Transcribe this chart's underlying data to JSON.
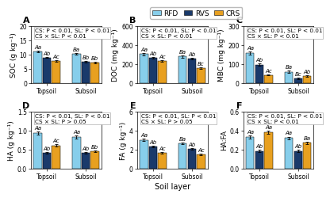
{
  "panels": [
    {
      "label": "A",
      "ylabel": "SOC (g kg⁻¹)",
      "ylim": [
        0,
        20
      ],
      "yticks": [
        0,
        5,
        10,
        15,
        20
      ],
      "stats": "CS: P < 0.01, SL: P < 0.01\nCS × SL: P < 0.01",
      "topsoil": [
        11.2,
        9.0,
        7.8
      ],
      "topsoil_err": [
        0.3,
        0.25,
        0.2
      ],
      "subsoil": [
        10.2,
        7.4,
        7.2
      ],
      "subsoil_err": [
        0.3,
        0.25,
        0.2
      ],
      "top_labels": [
        "Aa",
        "Ab",
        "Ac"
      ],
      "sub_labels": [
        "Ba",
        "Bb",
        "Bb"
      ]
    },
    {
      "label": "B",
      "ylabel": "DOC (mg kg⁻¹)",
      "ylim": [
        0,
        600
      ],
      "yticks": [
        0,
        200,
        400,
        600
      ],
      "stats": "CS: P < 0.01, SL: P < 0.01\nCS × SL: P < 0.01",
      "topsoil": [
        305,
        265,
        230
      ],
      "topsoil_err": [
        12,
        9,
        9
      ],
      "subsoil": [
        280,
        255,
        155
      ],
      "subsoil_err": [
        10,
        9,
        8
      ],
      "top_labels": [
        "Aa",
        "Ab",
        "Ac"
      ],
      "sub_labels": [
        "Ba",
        "Ab",
        "Bc"
      ]
    },
    {
      "label": "C",
      "ylabel": "MBC (mg kg⁻¹)",
      "ylim": [
        0,
        300
      ],
      "yticks": [
        0,
        100,
        200,
        300
      ],
      "stats": "CS: P < 0.01, SL: P < 0.01\nCS × SL: P < 0.01",
      "topsoil": [
        158,
        97,
        43
      ],
      "topsoil_err": [
        8,
        5,
        3
      ],
      "subsoil": [
        60,
        25,
        38
      ],
      "subsoil_err": [
        5,
        3,
        3
      ],
      "top_labels": [
        "Aa",
        "Ab",
        "Ac"
      ],
      "sub_labels": [
        "Ba",
        "Bc",
        "Ab"
      ]
    },
    {
      "label": "D",
      "ylabel": "HA (g kg⁻¹)",
      "ylim": [
        0.0,
        1.5
      ],
      "yticks": [
        0.0,
        0.5,
        1.0,
        1.5
      ],
      "stats": "CS: P < 0.01, SL: P < 0.01\nCS × SL: P > 0.05",
      "topsoil": [
        0.93,
        0.41,
        0.6
      ],
      "topsoil_err": [
        0.04,
        0.025,
        0.03
      ],
      "subsoil": [
        0.82,
        0.41,
        0.45
      ],
      "subsoil_err": [
        0.04,
        0.025,
        0.025
      ],
      "top_labels": [
        "Aa",
        "Ab",
        "Ac"
      ],
      "sub_labels": [
        "Aa",
        "Ab",
        "Bb"
      ]
    },
    {
      "label": "E",
      "ylabel": "FA (g kg⁻¹)",
      "ylim": [
        0,
        6
      ],
      "yticks": [
        0,
        2,
        4,
        6
      ],
      "stats": "CS: P < 0.01, SL: P < 0.01\nCS × SL: P > 0.05",
      "topsoil": [
        3.0,
        2.3,
        1.65
      ],
      "topsoil_err": [
        0.12,
        0.1,
        0.08
      ],
      "subsoil": [
        2.65,
        2.05,
        1.5
      ],
      "subsoil_err": [
        0.1,
        0.08,
        0.07
      ],
      "top_labels": [
        "Aa",
        "Ab",
        "Ac"
      ],
      "sub_labels": [
        "Ba",
        "Ab",
        "Ac"
      ]
    },
    {
      "label": "F",
      "ylabel": "HA:FA",
      "ylim": [
        0.0,
        0.6
      ],
      "yticks": [
        0.0,
        0.2,
        0.4,
        0.6
      ],
      "stats": "CS: P < 0.01, SL: P < 0.01\nCS × SL: P < 0.01",
      "topsoil": [
        0.33,
        0.185,
        0.38
      ],
      "topsoil_err": [
        0.015,
        0.01,
        0.015
      ],
      "subsoil": [
        0.32,
        0.185,
        0.27
      ],
      "subsoil_err": [
        0.015,
        0.01,
        0.012
      ],
      "top_labels": [
        "Aa",
        "Ab",
        "Aa"
      ],
      "sub_labels": [
        "Aa",
        "Ab",
        "Ba"
      ]
    }
  ],
  "colors": [
    "#87CEEB",
    "#1A3A6B",
    "#E8A020"
  ],
  "legend_labels": [
    "RFD",
    "RVS",
    "CRS"
  ],
  "bar_width": 0.2,
  "xlabel": "Soil layer",
  "label_fontsize": 6.5,
  "stats_fontsize": 5.2,
  "tick_fontsize": 5.5,
  "bar_label_fontsize": 5.0,
  "panel_label_fontsize": 8
}
